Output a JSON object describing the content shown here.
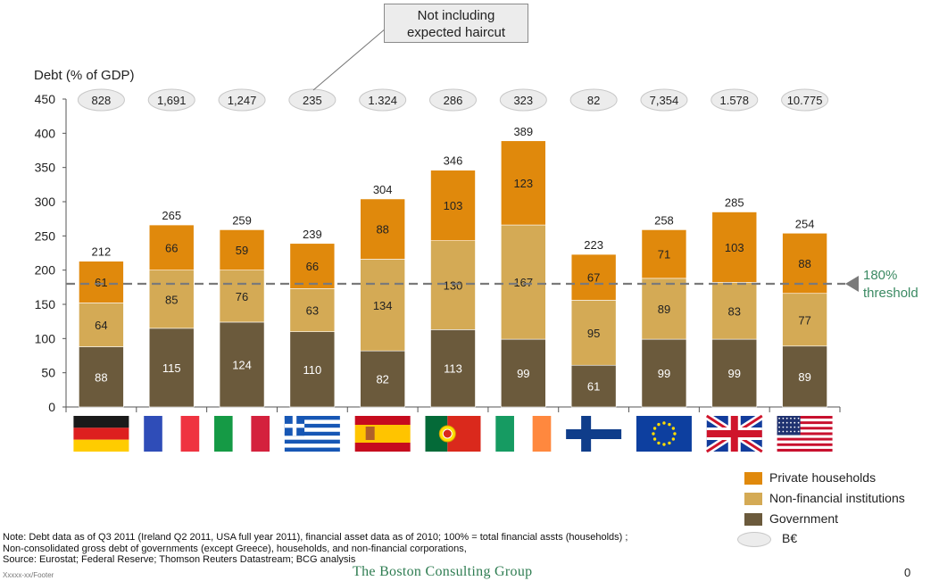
{
  "callout": {
    "line1": "Not including",
    "line2": "expected haircut"
  },
  "threshold_label": {
    "line1": "180%",
    "line2": "threshold"
  },
  "legend": {
    "items": [
      {
        "label": "Private households",
        "color": "#e0890c"
      },
      {
        "label": "Non-financial institutions",
        "color": "#d4aa55"
      },
      {
        "label": "Government",
        "color": "#6b5a3c"
      }
    ],
    "asset_label": "B€"
  },
  "note": {
    "line1": "Note: Debt data as of Q3 2011 (Ireland Q2 2011, USA full year 2011), financial asset data as of 2010; 100% =  total financial assts (households) ;",
    "line2": "Non-consolidated gross debt of governments (except Greece), households, and non-financial corporations,",
    "line3": "Source: Eurostat; Federal Reserve; Thomson Reuters Datastream; BCG analysis"
  },
  "footer": {
    "left": "Xxxxx-xx/Footer",
    "brand": "The Boston Consulting Group",
    "page": "0"
  },
  "chart_data": {
    "type": "bar",
    "stacked": true,
    "ylabel": "Debt (% of GDP)",
    "ylim": [
      0,
      450
    ],
    "yticks": [
      0,
      50,
      100,
      150,
      200,
      250,
      300,
      350,
      400,
      450
    ],
    "categories": [
      "Germany",
      "France",
      "Italy",
      "Greece",
      "Spain",
      "Portugal",
      "Ireland",
      "Finland",
      "Eurozone",
      "United Kingdom",
      "United States"
    ],
    "series": [
      {
        "name": "Government",
        "color": "#6b5a3c",
        "values": [
          88,
          115,
          124,
          110,
          82,
          113,
          99,
          61,
          99,
          99,
          89
        ]
      },
      {
        "name": "Non-financial institutions",
        "color": "#d4aa55",
        "values": [
          64,
          85,
          76,
          63,
          134,
          130,
          167,
          95,
          89,
          83,
          77
        ]
      },
      {
        "name": "Private households",
        "color": "#e0890c",
        "values": [
          61,
          66,
          59,
          66,
          88,
          103,
          123,
          67,
          71,
          103,
          88
        ]
      }
    ],
    "totals": [
      "212",
      "265",
      "259",
      "239",
      "304",
      "346",
      "389",
      "223",
      "258",
      "285",
      "254"
    ],
    "financial_assets_beur": [
      "828",
      "1,691",
      "1,247",
      "235",
      "1.324",
      "286",
      "323",
      "82",
      "7,354",
      "1.578",
      "10.775"
    ],
    "threshold": 180
  }
}
